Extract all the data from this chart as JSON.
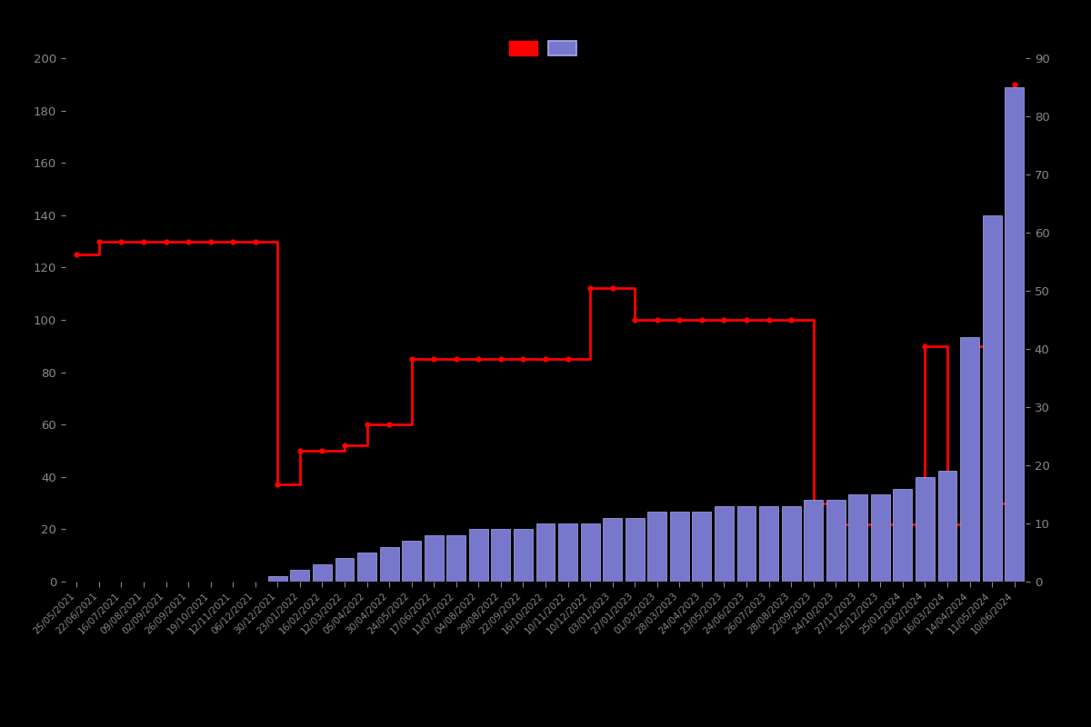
{
  "background_color": "#000000",
  "text_color": "#888888",
  "left_ylim": [
    0,
    200
  ],
  "right_ylim": [
    0,
    90
  ],
  "left_yticks": [
    0,
    20,
    40,
    60,
    80,
    100,
    120,
    140,
    160,
    180,
    200
  ],
  "right_yticks": [
    0,
    10,
    20,
    30,
    40,
    50,
    60,
    70,
    80,
    90
  ],
  "line_color": "#ff0000",
  "bar_facecolor": "#7777cc",
  "bar_edgecolor": "#aaaaee",
  "dates": [
    "25/05/2021",
    "22/06/2021",
    "16/07/2021",
    "09/08/2021",
    "02/09/2021",
    "26/09/2021",
    "19/10/2021",
    "12/11/2021",
    "06/12/2021",
    "30/12/2021",
    "23/01/2022",
    "16/02/2022",
    "12/03/2022",
    "05/04/2022",
    "30/04/2022",
    "24/05/2022",
    "17/06/2022",
    "11/07/2022",
    "04/08/2022",
    "29/08/2022",
    "22/09/2022",
    "16/10/2022",
    "10/11/2022",
    "10/12/2022",
    "03/01/2023",
    "27/01/2023",
    "01/03/2023",
    "28/03/2023",
    "24/04/2023",
    "23/05/2023",
    "24/06/2023",
    "26/07/2023",
    "28/08/2023",
    "22/09/2023",
    "24/10/2023",
    "27/11/2023",
    "25/12/2023",
    "25/01/2024",
    "21/02/2024",
    "16/03/2024",
    "14/04/2024",
    "11/05/2024",
    "10/06/2024"
  ],
  "price_y": [
    125,
    130,
    130,
    130,
    130,
    130,
    130,
    130,
    130,
    37,
    50,
    50,
    52,
    60,
    60,
    85,
    85,
    85,
    85,
    85,
    85,
    85,
    85,
    112,
    112,
    100,
    100,
    100,
    100,
    100,
    100,
    100,
    100,
    30,
    22,
    22,
    22,
    22,
    90,
    22,
    90,
    30,
    190
  ],
  "bar_y": [
    0,
    0,
    0,
    0,
    0,
    0,
    0,
    0,
    0,
    1,
    2,
    3,
    4,
    5,
    6,
    7,
    8,
    8,
    9,
    9,
    9,
    10,
    10,
    10,
    11,
    11,
    12,
    12,
    12,
    13,
    13,
    13,
    13,
    14,
    14,
    15,
    15,
    16,
    18,
    19,
    42,
    63,
    85
  ],
  "figsize": [
    12,
    8
  ],
  "dpi": 100
}
